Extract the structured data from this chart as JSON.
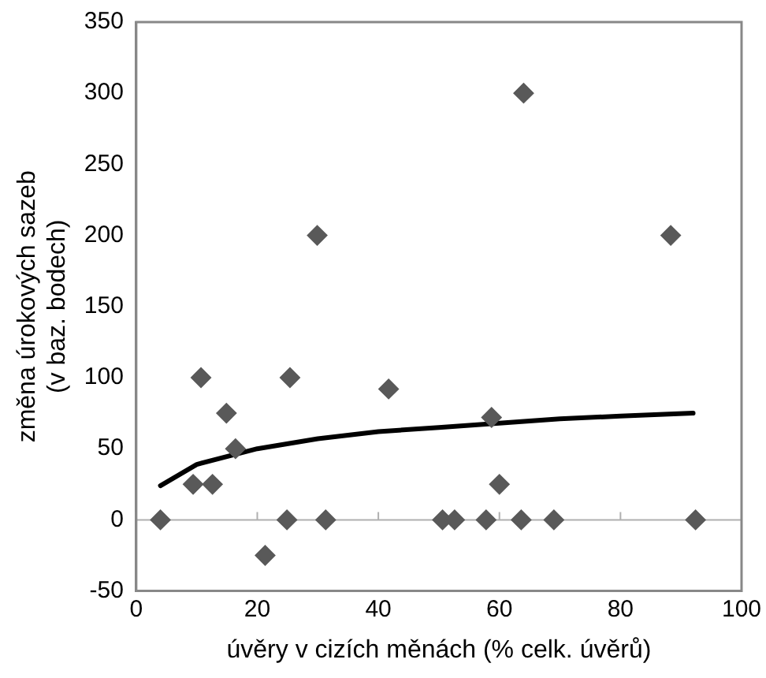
{
  "chart_data": {
    "type": "scatter",
    "xlabel": "úvěry v cizích měnách (% celk. úvěrů)",
    "ylabel": "změna úrokových sazeb\n(v baz. bodech)",
    "xlim": [
      0,
      100
    ],
    "xticks": [
      0,
      20,
      40,
      60,
      80,
      100
    ],
    "ylim": [
      -50,
      350
    ],
    "yticks": [
      -50,
      0,
      50,
      100,
      150,
      200,
      250,
      300,
      350
    ],
    "grid": false,
    "legend": false,
    "marker": "diamond",
    "ref_lines": [
      {
        "axis": "y",
        "value": 0,
        "color": "#b0b0b0"
      }
    ],
    "series": [
      {
        "color": "#595959",
        "x": [
          4,
          9.4,
          10.7,
          12.6,
          14.9,
          16.4,
          21.3,
          24.9,
          25.4,
          29.9,
          31.3,
          41.7,
          50.6,
          52.6,
          57.8,
          58.7,
          60,
          63.6,
          64,
          69,
          88.3,
          92.4
        ],
        "values": [
          0,
          25,
          100,
          25,
          75,
          50,
          -25,
          0,
          100,
          200,
          0,
          92,
          0,
          0,
          0,
          72,
          25,
          0,
          300,
          0,
          200,
          0
        ]
      },
      {
        "type": "line",
        "color": "#000000",
        "marker": "none",
        "x": [
          4,
          10,
          20,
          30,
          40,
          50,
          60,
          70,
          80,
          92
        ],
        "values": [
          24,
          39,
          50,
          57,
          62,
          65,
          68,
          71,
          73,
          75
        ]
      }
    ]
  }
}
